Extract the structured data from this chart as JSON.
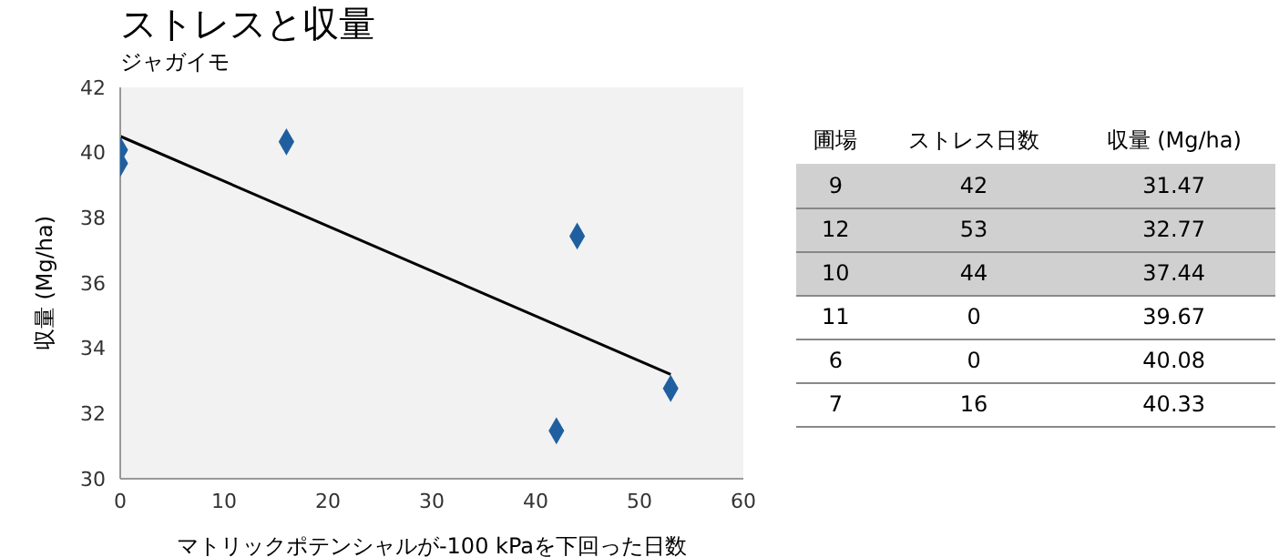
{
  "chart_data": [
    {
      "type": "scatter",
      "title": "ストレスと収量",
      "subtitle": "ジャガイモ",
      "xlabel": "マトリックポテンシャルが-100 kPaを下回った日数",
      "ylabel": "収量 (Mg/ha)",
      "xlim": [
        0,
        60
      ],
      "xticks": [
        0,
        10,
        20,
        30,
        40,
        50,
        60
      ],
      "ylim": [
        30,
        42
      ],
      "yticks": [
        30,
        32,
        34,
        36,
        38,
        40,
        42
      ],
      "legend": false,
      "grid": false,
      "series": [
        {
          "type": "scatter",
          "marker": "diamond",
          "color": "#1f5fa0",
          "x": [
            42,
            53,
            44,
            0,
            0,
            16
          ],
          "values": [
            31.47,
            32.77,
            37.44,
            39.67,
            40.08,
            40.33
          ]
        },
        {
          "type": "line",
          "marker": "none",
          "color": "#000000",
          "x": [
            0,
            53
          ],
          "values": [
            40.5,
            33.2
          ]
        }
      ]
    },
    {
      "type": "other",
      "annotations": [
        "圃場",
        "ストレス日数",
        "収量 (Mg/ha)",
        "9",
        "42",
        "31.47",
        "12",
        "53",
        "32.77",
        "10",
        "44",
        "37.44",
        "11",
        "0",
        "39.67",
        "6",
        "0",
        "40.08",
        "7",
        "16",
        "40.33"
      ]
    }
  ]
}
